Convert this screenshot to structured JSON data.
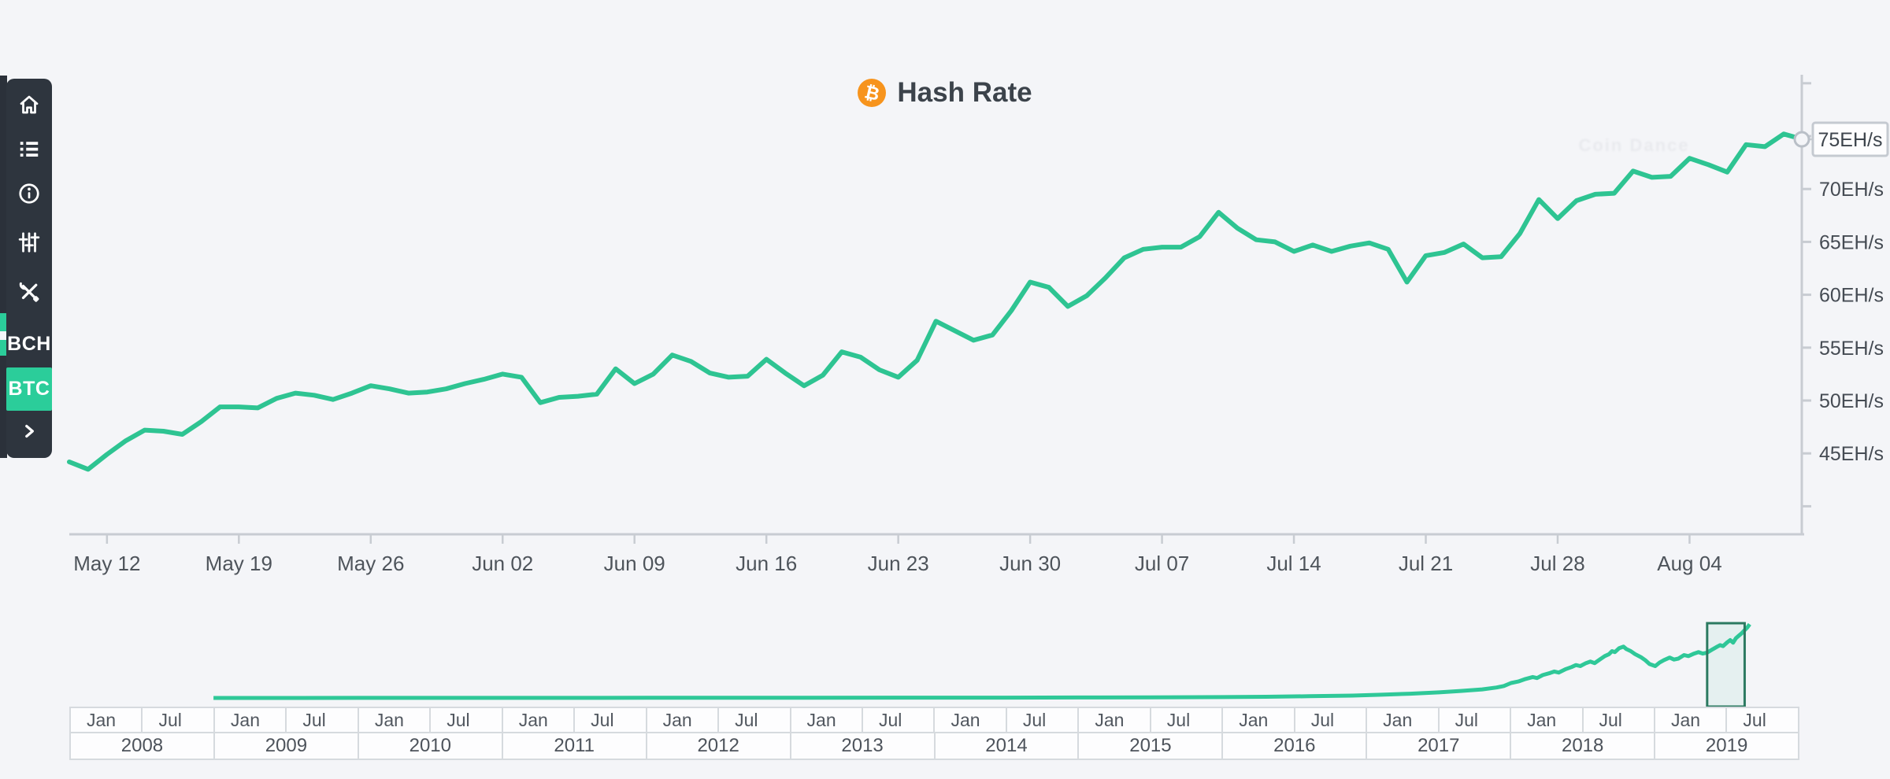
{
  "header": {
    "title": "Hash Rate",
    "icon": "bitcoin-icon",
    "icon_symbol": "₿"
  },
  "watermark": {
    "text": "Coin Dance"
  },
  "sidebar": {
    "icons": [
      {
        "name": "home-icon"
      },
      {
        "name": "list-icon"
      },
      {
        "name": "info-icon"
      },
      {
        "name": "sliders-icon"
      },
      {
        "name": "tools-icon"
      }
    ],
    "coins": [
      {
        "label": "BCH",
        "active": false
      },
      {
        "label": "BTC",
        "active": true
      }
    ],
    "collapse": {
      "name": "chevron-right-icon"
    }
  },
  "colors": {
    "page_bg": "#f4f5f8",
    "sidebar_bg": "#2e353e",
    "accent_green": "#2bcd9a",
    "line_green": "#2ec492",
    "nav_green": "#2fc898",
    "bitcoin_orange": "#f7941d",
    "axis_gray": "#c8ccd2",
    "label_dark": "#454b53",
    "selection_border": "#2c7a61",
    "value_box_border": "#c5cad1"
  },
  "chart_data": [
    {
      "id": "main",
      "type": "line",
      "title": "Hash Rate",
      "unit": "EH/s",
      "grid": false,
      "legend": "none",
      "ylim": [
        37.4,
        80.8
      ],
      "y_ticks": [
        {
          "value": 40,
          "label": ""
        },
        {
          "value": 45,
          "label": "45EH/s"
        },
        {
          "value": 50,
          "label": "50EH/s"
        },
        {
          "value": 55,
          "label": "55EH/s"
        },
        {
          "value": 60,
          "label": "60EH/s"
        },
        {
          "value": 65,
          "label": "65EH/s"
        },
        {
          "value": 70,
          "label": "70EH/s"
        },
        {
          "value": 75,
          "label": "75EH/s"
        },
        {
          "value": 80,
          "label": ""
        }
      ],
      "x_ticks": [
        {
          "index": 2,
          "label": "May 12"
        },
        {
          "index": 9,
          "label": "May 19"
        },
        {
          "index": 16,
          "label": "May 26"
        },
        {
          "index": 23,
          "label": "Jun 02"
        },
        {
          "index": 30,
          "label": "Jun 09"
        },
        {
          "index": 37,
          "label": "Jun 16"
        },
        {
          "index": 44,
          "label": "Jun 23"
        },
        {
          "index": 51,
          "label": "Jun 30"
        },
        {
          "index": 58,
          "label": "Jul 07"
        },
        {
          "index": 65,
          "label": "Jul 14"
        },
        {
          "index": 72,
          "label": "Jul 21"
        },
        {
          "index": 79,
          "label": "Jul 28"
        },
        {
          "index": 86,
          "label": "Aug 04"
        }
      ],
      "values": [
        44.2,
        43.5,
        44.9,
        46.2,
        47.2,
        47.1,
        46.8,
        48.0,
        49.4,
        49.4,
        49.3,
        50.2,
        50.7,
        50.5,
        50.1,
        50.7,
        51.4,
        51.1,
        50.7,
        50.8,
        51.1,
        51.6,
        52.0,
        52.5,
        52.2,
        49.8,
        50.3,
        50.4,
        50.6,
        53.0,
        51.6,
        52.5,
        54.3,
        53.7,
        52.6,
        52.2,
        52.3,
        53.9,
        52.6,
        51.4,
        52.4,
        54.6,
        54.1,
        52.9,
        52.2,
        53.8,
        57.5,
        56.6,
        55.7,
        56.2,
        58.5,
        61.2,
        60.7,
        58.9,
        59.9,
        61.6,
        63.5,
        64.3,
        64.5,
        64.5,
        65.5,
        67.8,
        66.3,
        65.2,
        65.0,
        64.1,
        64.7,
        64.1,
        64.6,
        64.9,
        64.3,
        61.2,
        63.7,
        64.0,
        64.8,
        63.5,
        63.6,
        65.8,
        69.0,
        67.2,
        68.9,
        69.5,
        69.6,
        71.7,
        71.1,
        71.2,
        72.9,
        72.3,
        71.6,
        74.2,
        74.0,
        75.2,
        74.7
      ],
      "last_value_label": "75EH/s"
    },
    {
      "id": "navigator",
      "type": "line",
      "ylim": [
        0,
        85
      ],
      "points": [
        [
          2009.0,
          0
        ],
        [
          2010.0,
          0.05
        ],
        [
          2011.0,
          0.1
        ],
        [
          2012.0,
          0.15
        ],
        [
          2013.0,
          0.2
        ],
        [
          2014.0,
          0.3
        ],
        [
          2014.5,
          0.35
        ],
        [
          2015.0,
          0.45
        ],
        [
          2015.5,
          0.6
        ],
        [
          2016.0,
          0.9
        ],
        [
          2016.3,
          1.2
        ],
        [
          2016.6,
          1.7
        ],
        [
          2016.9,
          2.4
        ],
        [
          2017.1,
          3.2
        ],
        [
          2017.3,
          4.3
        ],
        [
          2017.5,
          5.6
        ],
        [
          2017.65,
          7
        ],
        [
          2017.8,
          8.6
        ],
        [
          2017.9,
          10.5
        ],
        [
          2017.95,
          12
        ],
        [
          2018.0,
          15
        ],
        [
          2018.05,
          16.5
        ],
        [
          2018.1,
          19
        ],
        [
          2018.15,
          21
        ],
        [
          2018.18,
          20
        ],
        [
          2018.22,
          23
        ],
        [
          2018.27,
          25
        ],
        [
          2018.3,
          26.5
        ],
        [
          2018.33,
          25.5
        ],
        [
          2018.38,
          29
        ],
        [
          2018.42,
          31
        ],
        [
          2018.45,
          33
        ],
        [
          2018.48,
          32
        ],
        [
          2018.52,
          35
        ],
        [
          2018.55,
          36.5
        ],
        [
          2018.58,
          35
        ],
        [
          2018.62,
          39
        ],
        [
          2018.65,
          42
        ],
        [
          2018.68,
          44
        ],
        [
          2018.7,
          47
        ],
        [
          2018.72,
          46
        ],
        [
          2018.75,
          50
        ],
        [
          2018.78,
          51.5
        ],
        [
          2018.8,
          49
        ],
        [
          2018.83,
          47
        ],
        [
          2018.86,
          44
        ],
        [
          2018.9,
          41
        ],
        [
          2018.93,
          38
        ],
        [
          2018.96,
          34
        ],
        [
          2019.0,
          32
        ],
        [
          2019.03,
          35.5
        ],
        [
          2019.06,
          38
        ],
        [
          2019.1,
          40.5
        ],
        [
          2019.13,
          38.5
        ],
        [
          2019.16,
          39.5
        ],
        [
          2019.2,
          43
        ],
        [
          2019.23,
          42
        ],
        [
          2019.27,
          44.5
        ],
        [
          2019.3,
          46
        ],
        [
          2019.33,
          44.5
        ],
        [
          2019.36,
          45.5
        ],
        [
          2019.4,
          49
        ],
        [
          2019.43,
          51.5
        ],
        [
          2019.45,
          53
        ],
        [
          2019.47,
          52
        ],
        [
          2019.5,
          56
        ],
        [
          2019.52,
          58
        ],
        [
          2019.54,
          55.5
        ],
        [
          2019.56,
          60
        ],
        [
          2019.58,
          62.5
        ],
        [
          2019.6,
          65
        ],
        [
          2019.62,
          68
        ],
        [
          2019.64,
          71
        ],
        [
          2019.655,
          74
        ]
      ],
      "half_year_labels": [
        "Jan",
        "Jul"
      ],
      "years": [
        "2008",
        "2009",
        "2010",
        "2011",
        "2012",
        "2013",
        "2014",
        "2015",
        "2016",
        "2017",
        "2018",
        "2019"
      ],
      "selection": {
        "from": 2019.36,
        "to": 2019.62
      }
    }
  ]
}
